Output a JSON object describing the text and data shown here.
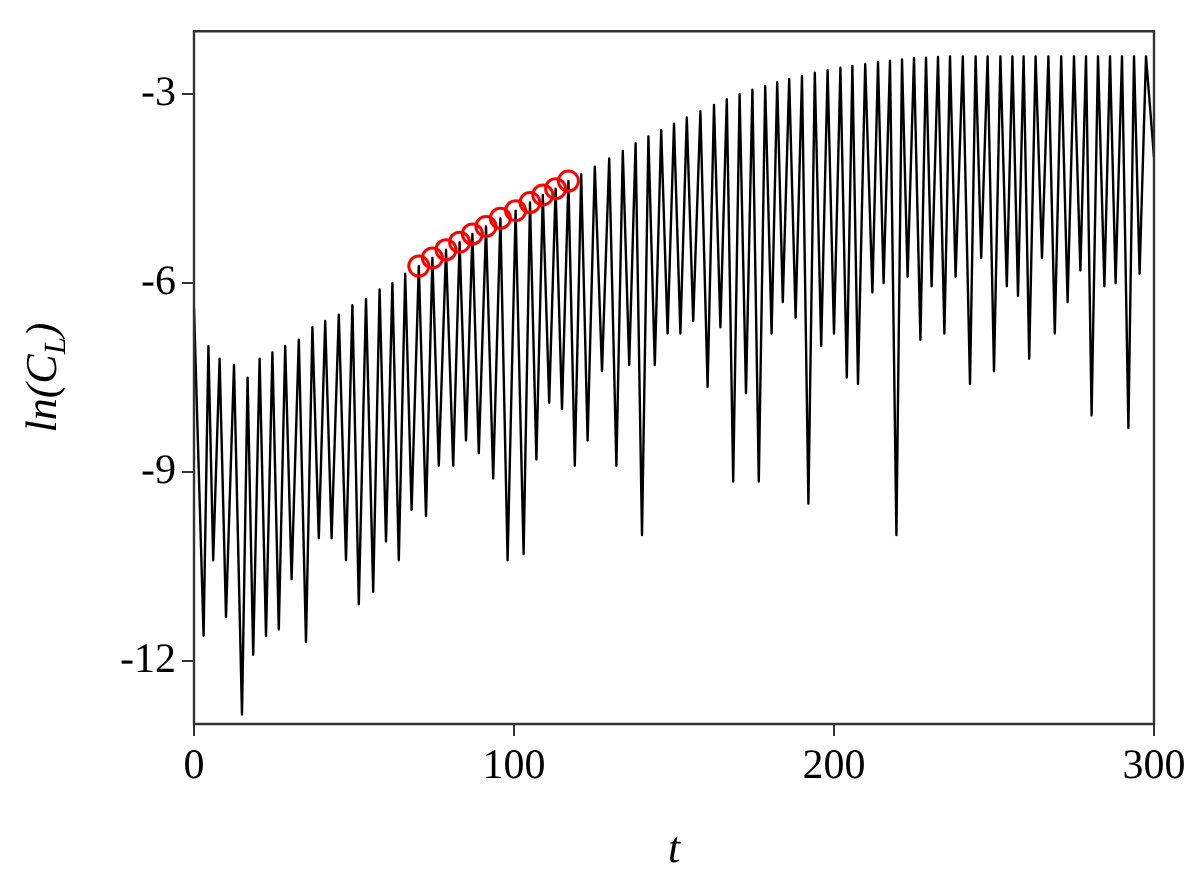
{
  "chart_data": {
    "type": "line",
    "xlabel": "t",
    "ylabel": "ln(C$_{L}$)",
    "xlim": [
      0,
      300
    ],
    "xticks": [
      0,
      100,
      200,
      300
    ],
    "ylim": [
      -13,
      -2
    ],
    "yticks": [
      -12,
      -9,
      -6,
      -3
    ],
    "grid": false,
    "legend": false,
    "series": [
      {
        "type": "line",
        "color": "#000000",
        "marker": "none",
        "x": [
          0,
          3,
          4.5,
          6,
          8,
          10,
          12.5,
          15,
          16.75,
          18.5,
          20.5,
          22.5,
          24.5,
          26.5,
          28.5,
          30.5,
          32.75,
          35,
          37,
          39,
          41,
          43,
          45.25,
          47.5,
          49.5,
          51.5,
          53.75,
          56,
          58,
          60,
          62,
          64,
          66,
          68,
          70.25,
          72.5,
          74.5,
          76.5,
          78.75,
          81,
          83,
          85,
          87,
          89,
          91.25,
          93.5,
          95.75,
          98,
          100.5,
          103,
          105,
          107,
          109,
          111,
          113,
          115,
          117,
          119,
          121,
          123,
          125.25,
          127.5,
          129.75,
          132,
          134,
          136,
          138,
          140,
          142,
          144,
          146,
          148,
          150,
          152,
          154,
          156,
          158.25,
          160.5,
          162.5,
          164.5,
          166.5,
          168.5,
          170.5,
          172.5,
          174.5,
          176.5,
          178.5,
          180.5,
          182.25,
          184,
          186,
          188,
          190,
          192,
          194,
          196,
          198,
          200,
          202,
          204,
          205.75,
          207.5,
          209.75,
          212,
          213.75,
          215.5,
          217.5,
          219.5,
          221.25,
          223,
          225,
          227,
          228.75,
          230.5,
          232.5,
          234.5,
          236.25,
          238,
          240.25,
          242.5,
          244.25,
          246,
          248,
          250,
          252,
          254,
          255.75,
          257.5,
          259.25,
          261,
          263,
          265,
          267,
          269,
          271,
          273,
          275,
          277,
          278.75,
          280.5,
          282.5,
          284.5,
          286.25,
          288,
          290,
          292,
          293.75,
          295.5,
          297.5,
          300
        ],
        "values": [
          -6.4,
          -11.6,
          -7.0,
          -10.4,
          -7.2,
          -11.3,
          -7.3,
          -12.85,
          -7.5,
          -11.9,
          -7.2,
          -11.6,
          -7.1,
          -11.5,
          -7.0,
          -10.7,
          -6.9,
          -11.7,
          -6.7,
          -10.05,
          -6.6,
          -10.05,
          -6.5,
          -10.4,
          -6.35,
          -11.1,
          -6.25,
          -10.9,
          -6.1,
          -10.1,
          -6.0,
          -10.4,
          -5.85,
          -9.6,
          -5.73,
          -9.7,
          -5.6,
          -8.9,
          -5.47,
          -8.9,
          -5.35,
          -8.5,
          -5.22,
          -8.7,
          -5.1,
          -9.1,
          -4.97,
          -10.4,
          -4.85,
          -10.3,
          -4.72,
          -8.8,
          -4.6,
          -7.9,
          -4.5,
          -8.0,
          -4.38,
          -8.9,
          -4.27,
          -8.5,
          -4.15,
          -7.4,
          -4.02,
          -8.9,
          -3.9,
          -7.3,
          -3.78,
          -10.0,
          -3.67,
          -7.3,
          -3.57,
          -6.8,
          -3.47,
          -6.8,
          -3.37,
          -6.6,
          -3.27,
          -7.65,
          -3.17,
          -6.7,
          -3.08,
          -9.15,
          -3.0,
          -7.75,
          -2.93,
          -9.15,
          -2.87,
          -6.8,
          -2.81,
          -6.3,
          -2.76,
          -6.55,
          -2.71,
          -9.5,
          -2.66,
          -7.0,
          -2.62,
          -6.8,
          -2.58,
          -7.5,
          -2.55,
          -7.6,
          -2.52,
          -6.15,
          -2.49,
          -6.0,
          -2.47,
          -10.0,
          -2.45,
          -5.9,
          -2.43,
          -6.9,
          -2.42,
          -6.05,
          -2.41,
          -6.8,
          -2.4,
          -5.9,
          -2.4,
          -7.6,
          -2.4,
          -5.6,
          -2.4,
          -7.4,
          -2.4,
          -6.05,
          -2.4,
          -6.2,
          -2.4,
          -7.2,
          -2.4,
          -5.6,
          -2.4,
          -6.8,
          -2.4,
          -6.3,
          -2.4,
          -5.8,
          -2.4,
          -8.1,
          -2.4,
          -6.05,
          -2.4,
          -6.0,
          -2.4,
          -8.3,
          -2.4,
          -5.85,
          -2.4,
          -4.0
        ]
      },
      {
        "type": "scatter",
        "color": "#ff0000",
        "marker": "circle",
        "x": [
          70.25,
          74.5,
          78.75,
          83,
          87,
          91.25,
          95.75,
          100.5,
          105,
          109,
          113,
          117
        ],
        "values": [
          -5.73,
          -5.6,
          -5.47,
          -5.35,
          -5.22,
          -5.1,
          -4.97,
          -4.85,
          -4.72,
          -4.6,
          -4.5,
          -4.38
        ]
      }
    ]
  }
}
